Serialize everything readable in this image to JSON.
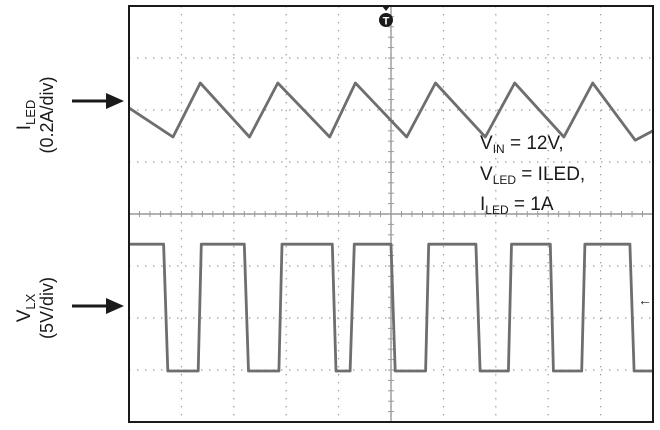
{
  "chart_data": {
    "type": "line",
    "grid": true,
    "grid_divisions": {
      "x": 10,
      "y": 8
    },
    "colors": {
      "trace": "#6e6e6e",
      "frame": "#1a1a1a",
      "grid": "#9a9a9a"
    },
    "series": [
      {
        "channel": "top",
        "label_main": "I",
        "label_sub": "LED",
        "label_scale": "(0.2A/div)",
        "ylim": [
          0,
          4
        ],
        "x": [
          0,
          0.84,
          1.36,
          2.3,
          2.84,
          3.83,
          4.32,
          5.3,
          5.85,
          6.8,
          7.36,
          8.3,
          8.85,
          9.66,
          10
        ],
        "y": [
          2.04,
          1.48,
          2.52,
          1.48,
          2.52,
          1.48,
          2.52,
          1.48,
          2.52,
          1.48,
          2.52,
          1.48,
          2.52,
          1.42,
          1.6
        ]
      },
      {
        "channel": "bottom",
        "label_main": "V",
        "label_sub": "LX",
        "label_scale": "(5V/div)",
        "ylim": [
          0,
          4
        ],
        "x": [
          0,
          0.66,
          0.74,
          1.32,
          1.38,
          2.2,
          2.28,
          2.86,
          2.92,
          3.88,
          3.95,
          4.22,
          4.3,
          5.0,
          5.08,
          5.66,
          5.72,
          6.62,
          6.7,
          7.24,
          7.3,
          8.04,
          8.1,
          8.64,
          8.7,
          9.56,
          9.64,
          10
        ],
        "y": [
          3.42,
          3.42,
          0.98,
          0.98,
          3.42,
          3.42,
          0.98,
          0.98,
          3.42,
          3.42,
          0.98,
          0.98,
          3.42,
          3.42,
          0.98,
          0.98,
          3.42,
          3.42,
          0.98,
          0.98,
          3.42,
          3.42,
          0.98,
          0.98,
          3.42,
          3.42,
          0.98,
          0.98
        ]
      }
    ],
    "annotations": [
      {
        "main": "V",
        "sub": "IN",
        "rest": " = 12V,"
      },
      {
        "main": "V",
        "sub": "LED",
        "rest": " = ILED,"
      },
      {
        "main": "I",
        "sub": "LED",
        "rest": " = 1A"
      }
    ],
    "trigger_marker": "T",
    "level_marker": "←"
  }
}
